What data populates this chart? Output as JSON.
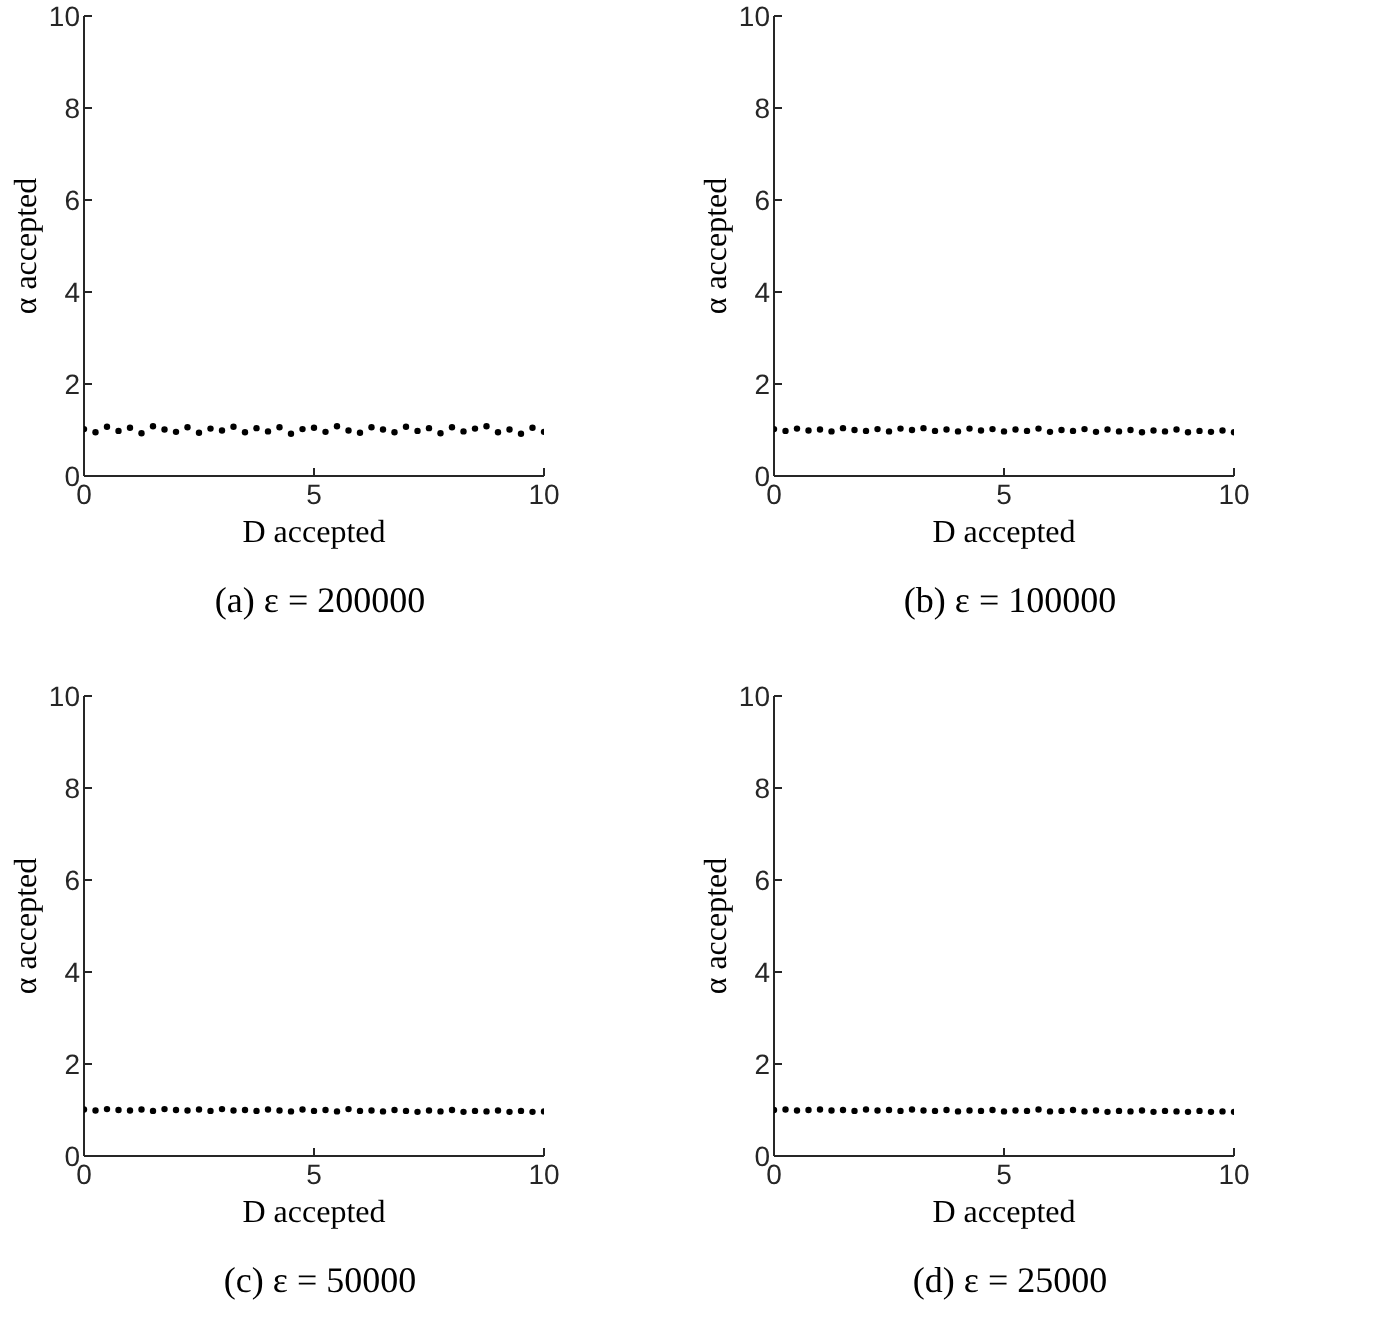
{
  "chart_data": [
    {
      "type": "scatter",
      "title": "(a) ε = 200000",
      "xlabel": "D accepted",
      "ylabel": "α accepted",
      "xlim": [
        0,
        10
      ],
      "ylim": [
        0,
        10
      ],
      "xticks": [
        0,
        5,
        10
      ],
      "yticks": [
        0,
        2,
        4,
        6,
        8,
        10
      ],
      "marker": "circle",
      "color": "#000000",
      "x": [
        0,
        0.25,
        0.5,
        0.75,
        1,
        1.25,
        1.5,
        1.75,
        2,
        2.25,
        2.5,
        2.75,
        3,
        3.25,
        3.5,
        3.75,
        4,
        4.25,
        4.5,
        4.75,
        5,
        5.25,
        5.5,
        5.75,
        6,
        6.25,
        6.5,
        6.75,
        7,
        7.25,
        7.5,
        7.75,
        8,
        8.25,
        8.5,
        8.75,
        9,
        9.25,
        9.5,
        9.75,
        10
      ],
      "values": [
        1.02,
        0.95,
        1.07,
        0.98,
        1.05,
        0.93,
        1.08,
        1.01,
        0.96,
        1.06,
        0.94,
        1.03,
        0.99,
        1.07,
        0.95,
        1.04,
        0.97,
        1.06,
        0.92,
        1.02,
        1.05,
        0.96,
        1.08,
        0.99,
        0.94,
        1.06,
        1.01,
        0.95,
        1.07,
        0.98,
        1.04,
        0.93,
        1.06,
        0.97,
        1.03,
        1.08,
        0.95,
        1.01,
        0.92,
        1.05,
        0.96
      ]
    },
    {
      "type": "scatter",
      "title": "(b) ε = 100000",
      "xlabel": "D accepted",
      "ylabel": "α accepted",
      "xlim": [
        0,
        10
      ],
      "ylim": [
        0,
        10
      ],
      "xticks": [
        0,
        5,
        10
      ],
      "yticks": [
        0,
        2,
        4,
        6,
        8,
        10
      ],
      "marker": "circle",
      "color": "#000000",
      "x": [
        0,
        0.25,
        0.5,
        0.75,
        1,
        1.25,
        1.5,
        1.75,
        2,
        2.25,
        2.5,
        2.75,
        3,
        3.25,
        3.5,
        3.75,
        4,
        4.25,
        4.5,
        4.75,
        5,
        5.25,
        5.5,
        5.75,
        6,
        6.25,
        6.5,
        6.75,
        7,
        7.25,
        7.5,
        7.75,
        8,
        8.25,
        8.5,
        8.75,
        9,
        9.25,
        9.5,
        9.75,
        10
      ],
      "values": [
        1.02,
        0.98,
        1.03,
        0.99,
        1.01,
        0.97,
        1.04,
        1.0,
        0.98,
        1.02,
        0.97,
        1.03,
        1.0,
        1.04,
        0.98,
        1.01,
        0.97,
        1.03,
        0.99,
        1.02,
        0.97,
        1.01,
        0.98,
        1.03,
        0.96,
        1.0,
        0.98,
        1.02,
        0.96,
        1.01,
        0.97,
        1.0,
        0.95,
        0.99,
        0.97,
        1.01,
        0.95,
        0.98,
        0.96,
        0.99,
        0.95
      ]
    },
    {
      "type": "scatter",
      "title": "(c) ε = 50000",
      "xlabel": "D accepted",
      "ylabel": "α accepted",
      "xlim": [
        0,
        10
      ],
      "ylim": [
        0,
        10
      ],
      "xticks": [
        0,
        5,
        10
      ],
      "yticks": [
        0,
        2,
        4,
        6,
        8,
        10
      ],
      "marker": "circle",
      "color": "#000000",
      "x": [
        0,
        0.25,
        0.5,
        0.75,
        1,
        1.25,
        1.5,
        1.75,
        2,
        2.25,
        2.5,
        2.75,
        3,
        3.25,
        3.5,
        3.75,
        4,
        4.25,
        4.5,
        4.75,
        5,
        5.25,
        5.5,
        5.75,
        6,
        6.25,
        6.5,
        6.75,
        7,
        7.25,
        7.5,
        7.75,
        8,
        8.25,
        8.5,
        8.75,
        9,
        9.25,
        9.5,
        9.75,
        10
      ],
      "values": [
        1.01,
        0.99,
        1.02,
        1.0,
        0.99,
        1.01,
        0.98,
        1.02,
        1.0,
        0.99,
        1.01,
        0.98,
        1.02,
        0.99,
        1.0,
        0.98,
        1.01,
        0.99,
        0.97,
        1.01,
        0.98,
        1.0,
        0.97,
        1.02,
        0.98,
        0.99,
        0.97,
        1.0,
        0.98,
        0.96,
        0.99,
        0.97,
        1.0,
        0.96,
        0.98,
        0.97,
        0.99,
        0.96,
        0.98,
        0.96,
        0.97
      ]
    },
    {
      "type": "scatter",
      "title": "(d) ε = 25000",
      "xlabel": "D accepted",
      "ylabel": "α accepted",
      "xlim": [
        0,
        10
      ],
      "ylim": [
        0,
        10
      ],
      "xticks": [
        0,
        5,
        10
      ],
      "yticks": [
        0,
        2,
        4,
        6,
        8,
        10
      ],
      "marker": "circle",
      "color": "#000000",
      "x": [
        0,
        0.25,
        0.5,
        0.75,
        1,
        1.25,
        1.5,
        1.75,
        2,
        2.25,
        2.5,
        2.75,
        3,
        3.25,
        3.5,
        3.75,
        4,
        4.25,
        4.5,
        4.75,
        5,
        5.25,
        5.5,
        5.75,
        6,
        6.25,
        6.5,
        6.75,
        7,
        7.25,
        7.5,
        7.75,
        8,
        8.25,
        8.5,
        8.75,
        9,
        9.25,
        9.5,
        9.75,
        10
      ],
      "values": [
        1.0,
        1.01,
        0.99,
        1.0,
        1.01,
        0.99,
        1.0,
        0.98,
        1.01,
        0.99,
        1.0,
        0.98,
        1.01,
        0.99,
        0.98,
        1.0,
        0.97,
        0.99,
        0.98,
        1.0,
        0.97,
        0.99,
        0.98,
        1.01,
        0.97,
        0.98,
        1.0,
        0.97,
        0.99,
        0.96,
        0.98,
        0.97,
        0.99,
        0.96,
        0.98,
        0.97,
        0.96,
        0.98,
        0.96,
        0.97,
        0.96
      ]
    }
  ]
}
